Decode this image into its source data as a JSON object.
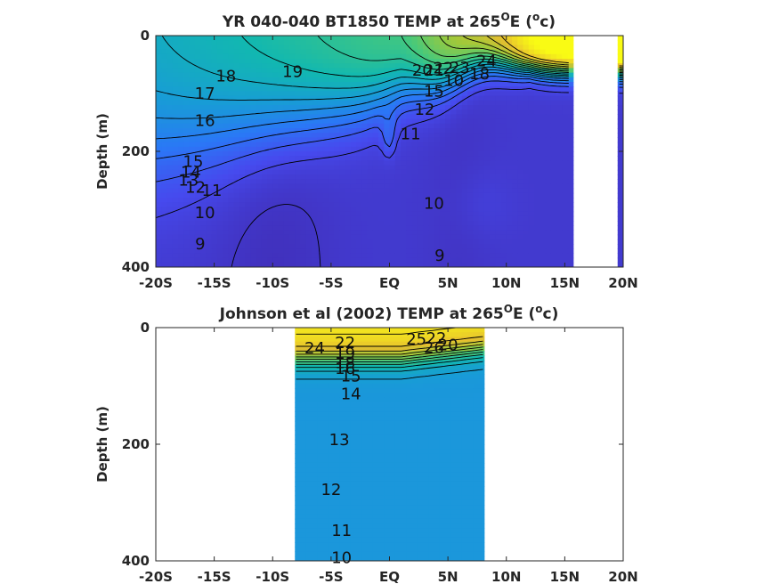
{
  "chart_data": [
    {
      "type": "heatmap",
      "title": "YR 040-040 BT1850 TEMP at 265",
      "title_sup": "O",
      "title_tail": "E (",
      "title_unit_sup": "o",
      "title_unit_tail": "c)",
      "ylabel": "Depth (m)",
      "xlabel": "",
      "xlim": [
        -20,
        20
      ],
      "ylim": [
        0,
        400
      ],
      "y_reversed": true,
      "x_ticks": [
        -20,
        -15,
        -10,
        -5,
        0,
        5,
        10,
        15,
        20
      ],
      "x_tick_labels": [
        "-20S",
        "-15S",
        "-10S",
        "-5S",
        "EQ",
        "5N",
        "10N",
        "15N",
        "20N"
      ],
      "y_ticks": [
        0,
        200,
        400
      ],
      "y_tick_labels": [
        "0",
        "200",
        "400"
      ],
      "data_x_range": [
        -20,
        20
      ],
      "missing_x_ranges": [
        [
          15.5,
          19.5
        ]
      ],
      "colormap": "parula",
      "color_range": [
        8,
        26
      ],
      "contour_levels": [
        9,
        10,
        11,
        12,
        13,
        14,
        15,
        16,
        17,
        18,
        19,
        20,
        21,
        22,
        23,
        24
      ],
      "contour_labels": [
        {
          "text": "18",
          "x": -14.0,
          "y": 70
        },
        {
          "text": "19",
          "x": -8.3,
          "y": 62
        },
        {
          "text": "17",
          "x": -15.8,
          "y": 100
        },
        {
          "text": "16",
          "x": -15.8,
          "y": 147
        },
        {
          "text": "15",
          "x": -16.8,
          "y": 218
        },
        {
          "text": "14",
          "x": -17.0,
          "y": 236
        },
        {
          "text": "13",
          "x": -17.2,
          "y": 250
        },
        {
          "text": "12",
          "x": -16.6,
          "y": 262
        },
        {
          "text": "11",
          "x": -15.2,
          "y": 268
        },
        {
          "text": "10",
          "x": -15.8,
          "y": 306
        },
        {
          "text": "9",
          "x": -16.2,
          "y": 360
        },
        {
          "text": "11",
          "x": 1.8,
          "y": 170
        },
        {
          "text": "12",
          "x": 3.0,
          "y": 128
        },
        {
          "text": "10",
          "x": 3.8,
          "y": 290
        },
        {
          "text": "9",
          "x": 4.3,
          "y": 380
        },
        {
          "text": "15",
          "x": 3.8,
          "y": 96
        },
        {
          "text": "20",
          "x": 2.8,
          "y": 60
        },
        {
          "text": "21",
          "x": 3.8,
          "y": 60
        },
        {
          "text": "22",
          "x": 4.6,
          "y": 56
        },
        {
          "text": "23",
          "x": 6.0,
          "y": 55
        },
        {
          "text": "24",
          "x": 8.3,
          "y": 44
        },
        {
          "text": "10",
          "x": 5.5,
          "y": 78
        },
        {
          "text": "18",
          "x": 7.7,
          "y": 66
        }
      ]
    },
    {
      "type": "heatmap",
      "title": "Johnson et al (2002) TEMP at 265",
      "title_sup": "O",
      "title_tail": "E (",
      "title_unit_sup": "o",
      "title_unit_tail": "c)",
      "ylabel": "Depth (m)",
      "xlabel": "",
      "xlim": [
        -20,
        20
      ],
      "ylim": [
        0,
        400
      ],
      "y_reversed": true,
      "x_ticks": [
        -20,
        -15,
        -10,
        -5,
        0,
        5,
        10,
        15,
        20
      ],
      "x_tick_labels": [
        "-20S",
        "-15S",
        "-10S",
        "-5S",
        "EQ",
        "5N",
        "10N",
        "15N",
        "20N"
      ],
      "y_ticks": [
        0,
        200,
        400
      ],
      "y_tick_labels": [
        "0",
        "200",
        "400"
      ],
      "data_x_range": [
        -8,
        8
      ],
      "colormap": "parula",
      "color_range": [
        8,
        26
      ],
      "contour_levels": [
        10,
        11,
        12,
        13,
        14,
        15,
        16,
        17,
        18,
        19,
        20,
        21,
        22,
        23,
        24,
        25,
        26
      ],
      "contour_labels": [
        {
          "text": "24",
          "x": -6.4,
          "y": 35
        },
        {
          "text": "22",
          "x": -3.8,
          "y": 26
        },
        {
          "text": "19",
          "x": -3.8,
          "y": 44
        },
        {
          "text": "18",
          "x": -3.8,
          "y": 60
        },
        {
          "text": "16",
          "x": -3.8,
          "y": 70
        },
        {
          "text": "15",
          "x": -3.3,
          "y": 83
        },
        {
          "text": "14",
          "x": -3.3,
          "y": 114
        },
        {
          "text": "13",
          "x": -4.3,
          "y": 192
        },
        {
          "text": "12",
          "x": -5.0,
          "y": 278
        },
        {
          "text": "11",
          "x": -4.1,
          "y": 348
        },
        {
          "text": "10",
          "x": -4.1,
          "y": 395
        },
        {
          "text": "25",
          "x": 2.3,
          "y": 20
        },
        {
          "text": "22",
          "x": 4.0,
          "y": 18
        },
        {
          "text": "26",
          "x": 3.8,
          "y": 34
        },
        {
          "text": "20",
          "x": 5.0,
          "y": 30
        }
      ]
    }
  ]
}
